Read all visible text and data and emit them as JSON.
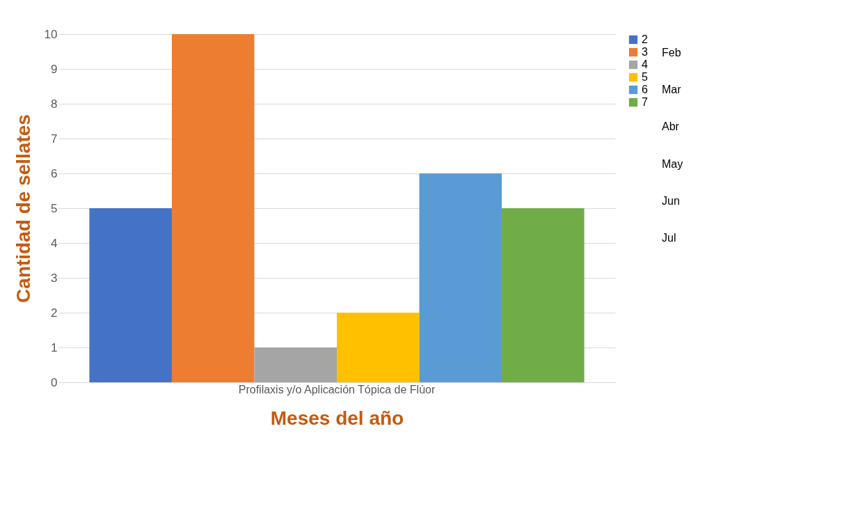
{
  "chart_data": {
    "type": "bar",
    "xlabel": "Meses del año",
    "ylabel": "Cantidad de sellates",
    "categories": [
      "Profilaxis y/o Aplicación Tópica de Flúor"
    ],
    "series": [
      {
        "name": "2",
        "color": "#4472c4",
        "values": [
          5
        ]
      },
      {
        "name": "3",
        "color": "#ed7d31",
        "values": [
          10
        ]
      },
      {
        "name": "4",
        "color": "#a5a5a5",
        "values": [
          1
        ]
      },
      {
        "name": "5",
        "color": "#ffc000",
        "values": [
          2
        ]
      },
      {
        "name": "6",
        "color": "#5b9bd5",
        "values": [
          6
        ]
      },
      {
        "name": "7",
        "color": "#70ad47",
        "values": [
          5
        ]
      }
    ],
    "ylim": [
      0,
      10
    ],
    "yticks": [
      0,
      1,
      2,
      3,
      4,
      5,
      6,
      7,
      8,
      9,
      10
    ],
    "grid": "y",
    "legend": "right",
    "annotations": [
      "Feb",
      "Mar",
      "Abr",
      "May",
      "Jun",
      "Jul"
    ]
  }
}
